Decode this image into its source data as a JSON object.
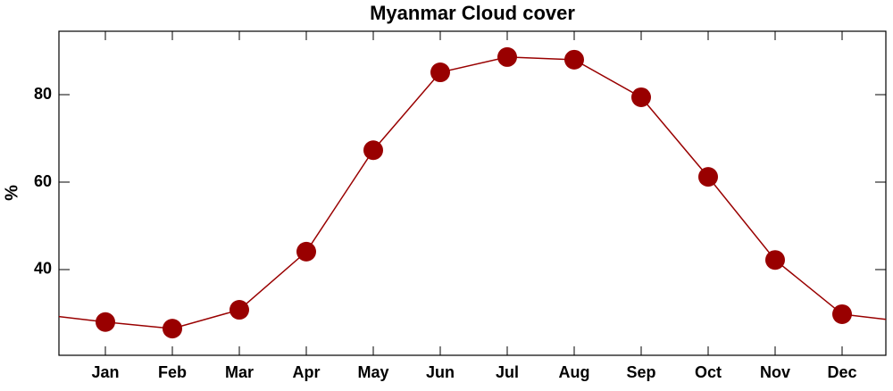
{
  "chart_data": {
    "type": "line",
    "title": "Myanmar Cloud cover",
    "y_label": "%",
    "categories": [
      "Jan",
      "Feb",
      "Mar",
      "Apr",
      "May",
      "Jun",
      "Jul",
      "Aug",
      "Sep",
      "Oct",
      "Nov",
      "Dec"
    ],
    "series": [
      {
        "name": "Cloud cover",
        "color": "#990000",
        "values": [
          28.0,
          26.5,
          30.8,
          44.1,
          67.3,
          85.1,
          88.6,
          88.0,
          79.4,
          61.2,
          42.2,
          29.8
        ]
      }
    ],
    "ylim": [
      20.4,
      94.5
    ],
    "yticks": [
      40,
      60,
      80
    ],
    "grid": false
  }
}
